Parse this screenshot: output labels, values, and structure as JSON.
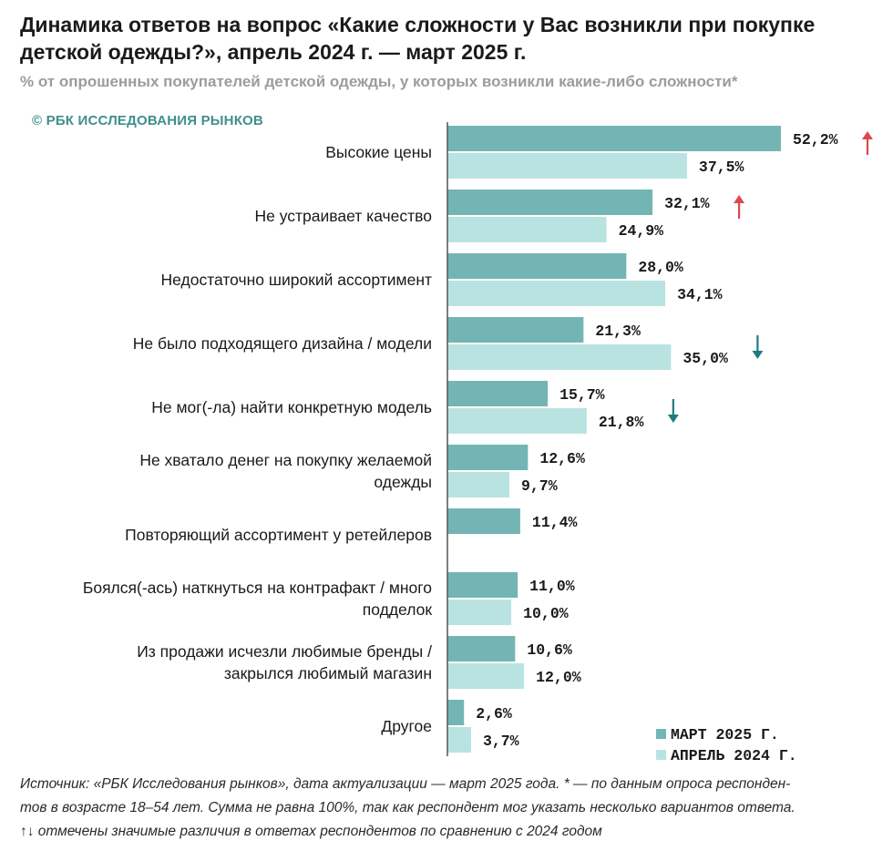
{
  "colors": {
    "series_2025": "#73b5b4",
    "series_2024": "#b9e3e0",
    "arrow_up": "#e0474c",
    "arrow_down": "#1f7b80",
    "axis": "#555555",
    "logo": "#3f8f8e"
  },
  "logo_text": "© РБК ИССЛЕДОВАНИЯ РЫНКОВ",
  "footer": {
    "line1": "Источник: «РБК Исследования рынков», дата актуализации — март 2025 года. * — по данным опроса респонден-",
    "line2": "тов в возрасте 18–54 лет. Сумма не равна 100%, так как респондент мог указать несколько вариантов ответа.",
    "line3": "↑↓ отмечены значимые различия в ответах респондентов по сравнению с 2024 годом"
  },
  "chart_data": {
    "type": "bar",
    "orientation": "horizontal",
    "title": "Динамика ответов на вопрос «Какие сложности у Вас возникли при покупке детской одежды?», апрель 2024 г. — март 2025 г.",
    "subtitle": "% от опрошенных покупателей детской одежды, у которых возникли какие-либо сложности*",
    "value_suffix": "%",
    "xlim": [
      0,
      52.2
    ],
    "legend_position": "bottom-right",
    "categories": [
      [
        "Высокие цены"
      ],
      [
        "Не устраивает качество"
      ],
      [
        "Недостаточно широкий ассортимент"
      ],
      [
        "Не было подходящего дизайна / модели"
      ],
      [
        "Не мог(-ла) найти конкретную модель"
      ],
      [
        "Не хватало денег на покупку желаемой",
        "одежды"
      ],
      [
        "Повторяющий ассортимент у ретейлеров"
      ],
      [
        "Боялся(-ась) наткнуться на контрафакт / много",
        "подделок"
      ],
      [
        "Из продажи исчезли любимые бренды /",
        "закрылся любимый магазин"
      ],
      [
        "Другое"
      ]
    ],
    "series": [
      {
        "name": "МАРТ 2025 Г.",
        "values": [
          52.2,
          32.1,
          28.0,
          21.3,
          15.7,
          12.6,
          11.4,
          11.0,
          10.6,
          2.6
        ],
        "labels": [
          "52,2%",
          "32,1%",
          "28,0%",
          "21,3%",
          "15,7%",
          "12,6%",
          "11,4%",
          "11,0%",
          "10,6%",
          "2,6%"
        ]
      },
      {
        "name": "АПРЕЛЬ 2024 Г.",
        "values": [
          37.5,
          24.9,
          34.1,
          35.0,
          21.8,
          9.7,
          null,
          10.0,
          12.0,
          3.7
        ],
        "labels": [
          "37,5%",
          "24,9%",
          "34,1%",
          "35,0%",
          "21,8%",
          "9,7%",
          null,
          "10,0%",
          "12,0%",
          "3,7%"
        ]
      }
    ],
    "significance": [
      "up",
      "up",
      null,
      "down",
      "down",
      null,
      null,
      null,
      null,
      null
    ]
  }
}
